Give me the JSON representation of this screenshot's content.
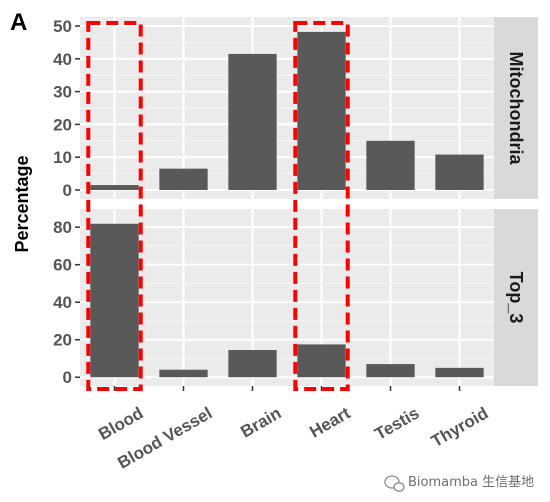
{
  "panel_tag": "A",
  "watermark": "Biomamba 生信基地",
  "colors": {
    "bar": "#595959",
    "panel_bg": "#ebebeb",
    "strip_bg": "#d9d9d9",
    "highlight": "#ff0000"
  },
  "chart_data": {
    "type": "bar",
    "ylabel": "Percentage",
    "xlabel": "",
    "categories": [
      "Blood",
      "Blood Vessel",
      "Brain",
      "Heart",
      "Testis",
      "Thyroid"
    ],
    "facets": [
      {
        "name": "Mitochondria",
        "values": [
          1.5,
          6.5,
          41.5,
          48.2,
          15.0,
          10.8
        ],
        "ylim": [
          0,
          50
        ],
        "yticks": [
          0,
          10,
          20,
          30,
          40,
          50
        ]
      },
      {
        "name": "Top_3",
        "values": [
          81.8,
          4.0,
          14.5,
          17.5,
          7.0,
          5.0
        ],
        "ylim": [
          0,
          85
        ],
        "yticks": [
          0,
          20,
          40,
          60,
          80
        ]
      }
    ],
    "highlighted_categories": [
      "Blood",
      "Heart"
    ],
    "grid": true,
    "legend": "none"
  }
}
